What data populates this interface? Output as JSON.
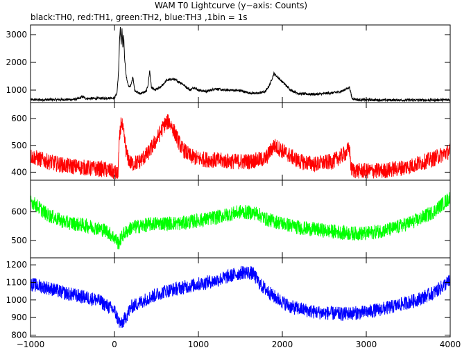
{
  "chart_data": {
    "type": "line",
    "title": "WAM T0 Lightcurve (y−axis: Counts)",
    "subtitle": "black:TH0, red:TH1, green:TH2, blue:TH3 ,1bin = 1s",
    "xlim": [
      -1000,
      4000
    ],
    "x_ticks": [
      -1000,
      0,
      1000,
      2000,
      3000,
      4000
    ],
    "x_tick_labels": [
      "−1000",
      "0",
      "1000",
      "2000",
      "3000",
      "4000"
    ],
    "grid": false,
    "panels": [
      {
        "series_name": "TH0",
        "color": "#000000",
        "ylim": [
          550,
          3350
        ],
        "y_ticks": [
          1000,
          2000,
          3000
        ],
        "noise": 45,
        "points": [
          [
            -1000,
            650
          ],
          [
            -500,
            660
          ],
          [
            -420,
            700
          ],
          [
            -380,
            760
          ],
          [
            -340,
            700
          ],
          [
            -200,
            700
          ],
          [
            -100,
            710
          ],
          [
            0,
            720
          ],
          [
            30,
            900
          ],
          [
            50,
            1700
          ],
          [
            60,
            2800
          ],
          [
            70,
            3250
          ],
          [
            80,
            2600
          ],
          [
            90,
            3200
          ],
          [
            100,
            2500
          ],
          [
            110,
            3000
          ],
          [
            120,
            2200
          ],
          [
            140,
            1500
          ],
          [
            170,
            1100
          ],
          [
            200,
            1200
          ],
          [
            220,
            1500
          ],
          [
            240,
            1000
          ],
          [
            300,
            870
          ],
          [
            380,
            950
          ],
          [
            400,
            1200
          ],
          [
            420,
            1700
          ],
          [
            440,
            1100
          ],
          [
            480,
            1000
          ],
          [
            550,
            1100
          ],
          [
            620,
            1350
          ],
          [
            700,
            1400
          ],
          [
            800,
            1250
          ],
          [
            900,
            1000
          ],
          [
            950,
            1100
          ],
          [
            1000,
            1000
          ],
          [
            1100,
            950
          ],
          [
            1200,
            1050
          ],
          [
            1300,
            1000
          ],
          [
            1400,
            1000
          ],
          [
            1500,
            980
          ],
          [
            1600,
            900
          ],
          [
            1700,
            880
          ],
          [
            1800,
            950
          ],
          [
            1850,
            1200
          ],
          [
            1900,
            1600
          ],
          [
            1950,
            1450
          ],
          [
            2000,
            1300
          ],
          [
            2100,
            1000
          ],
          [
            2200,
            870
          ],
          [
            2400,
            850
          ],
          [
            2600,
            900
          ],
          [
            2700,
            950
          ],
          [
            2800,
            1100
          ],
          [
            2830,
            700
          ],
          [
            2900,
            650
          ],
          [
            3200,
            640
          ],
          [
            3500,
            640
          ],
          [
            3800,
            640
          ],
          [
            4000,
            650
          ]
        ]
      },
      {
        "series_name": "TH1",
        "color": "#ff0000",
        "ylim": [
          370,
          660
        ],
        "y_ticks": [
          400,
          500,
          600
        ],
        "noise": 30,
        "points": [
          [
            -1000,
            460
          ],
          [
            -800,
            440
          ],
          [
            -600,
            425
          ],
          [
            -300,
            415
          ],
          [
            -100,
            410
          ],
          [
            0,
            400
          ],
          [
            40,
            390
          ],
          [
            60,
            520
          ],
          [
            80,
            590
          ],
          [
            100,
            560
          ],
          [
            120,
            520
          ],
          [
            150,
            460
          ],
          [
            200,
            430
          ],
          [
            300,
            440
          ],
          [
            400,
            470
          ],
          [
            500,
            520
          ],
          [
            600,
            580
          ],
          [
            650,
            590
          ],
          [
            700,
            560
          ],
          [
            800,
            490
          ],
          [
            900,
            460
          ],
          [
            1000,
            450
          ],
          [
            1200,
            445
          ],
          [
            1400,
            440
          ],
          [
            1600,
            440
          ],
          [
            1800,
            450
          ],
          [
            1900,
            500
          ],
          [
            2000,
            480
          ],
          [
            2200,
            440
          ],
          [
            2400,
            430
          ],
          [
            2600,
            440
          ],
          [
            2750,
            470
          ],
          [
            2800,
            490
          ],
          [
            2820,
            410
          ],
          [
            2900,
            405
          ],
          [
            3200,
            405
          ],
          [
            3500,
            420
          ],
          [
            3800,
            450
          ],
          [
            4000,
            480
          ]
        ]
      },
      {
        "series_name": "TH2",
        "color": "#00ff00",
        "ylim": [
          440,
          710
        ],
        "y_ticks": [
          500,
          600
        ],
        "noise": 25,
        "points": [
          [
            -1000,
            640
          ],
          [
            -800,
            590
          ],
          [
            -600,
            565
          ],
          [
            -300,
            550
          ],
          [
            -100,
            535
          ],
          [
            0,
            510
          ],
          [
            50,
            490
          ],
          [
            100,
            520
          ],
          [
            200,
            545
          ],
          [
            500,
            560
          ],
          [
            800,
            560
          ],
          [
            1200,
            580
          ],
          [
            1500,
            600
          ],
          [
            1700,
            595
          ],
          [
            1800,
            575
          ],
          [
            2000,
            560
          ],
          [
            2200,
            545
          ],
          [
            2500,
            535
          ],
          [
            2800,
            525
          ],
          [
            3000,
            525
          ],
          [
            3300,
            540
          ],
          [
            3600,
            570
          ],
          [
            3800,
            600
          ],
          [
            4000,
            650
          ]
        ]
      },
      {
        "series_name": "TH3",
        "color": "#0000ff",
        "ylim": [
          790,
          1240
        ],
        "y_ticks": [
          800,
          900,
          1000,
          1100,
          1200
        ],
        "noise": 40,
        "points": [
          [
            -1000,
            1090
          ],
          [
            -800,
            1070
          ],
          [
            -600,
            1040
          ],
          [
            -400,
            1020
          ],
          [
            -200,
            1000
          ],
          [
            0,
            940
          ],
          [
            50,
            880
          ],
          [
            80,
            860
          ],
          [
            120,
            890
          ],
          [
            200,
            960
          ],
          [
            400,
            1010
          ],
          [
            600,
            1050
          ],
          [
            800,
            1070
          ],
          [
            1000,
            1090
          ],
          [
            1200,
            1110
          ],
          [
            1400,
            1140
          ],
          [
            1550,
            1160
          ],
          [
            1650,
            1150
          ],
          [
            1750,
            1080
          ],
          [
            1900,
            1020
          ],
          [
            2100,
            960
          ],
          [
            2400,
            930
          ],
          [
            2700,
            920
          ],
          [
            3000,
            930
          ],
          [
            3300,
            960
          ],
          [
            3600,
            1000
          ],
          [
            3800,
            1040
          ],
          [
            4000,
            1110
          ]
        ]
      }
    ]
  }
}
